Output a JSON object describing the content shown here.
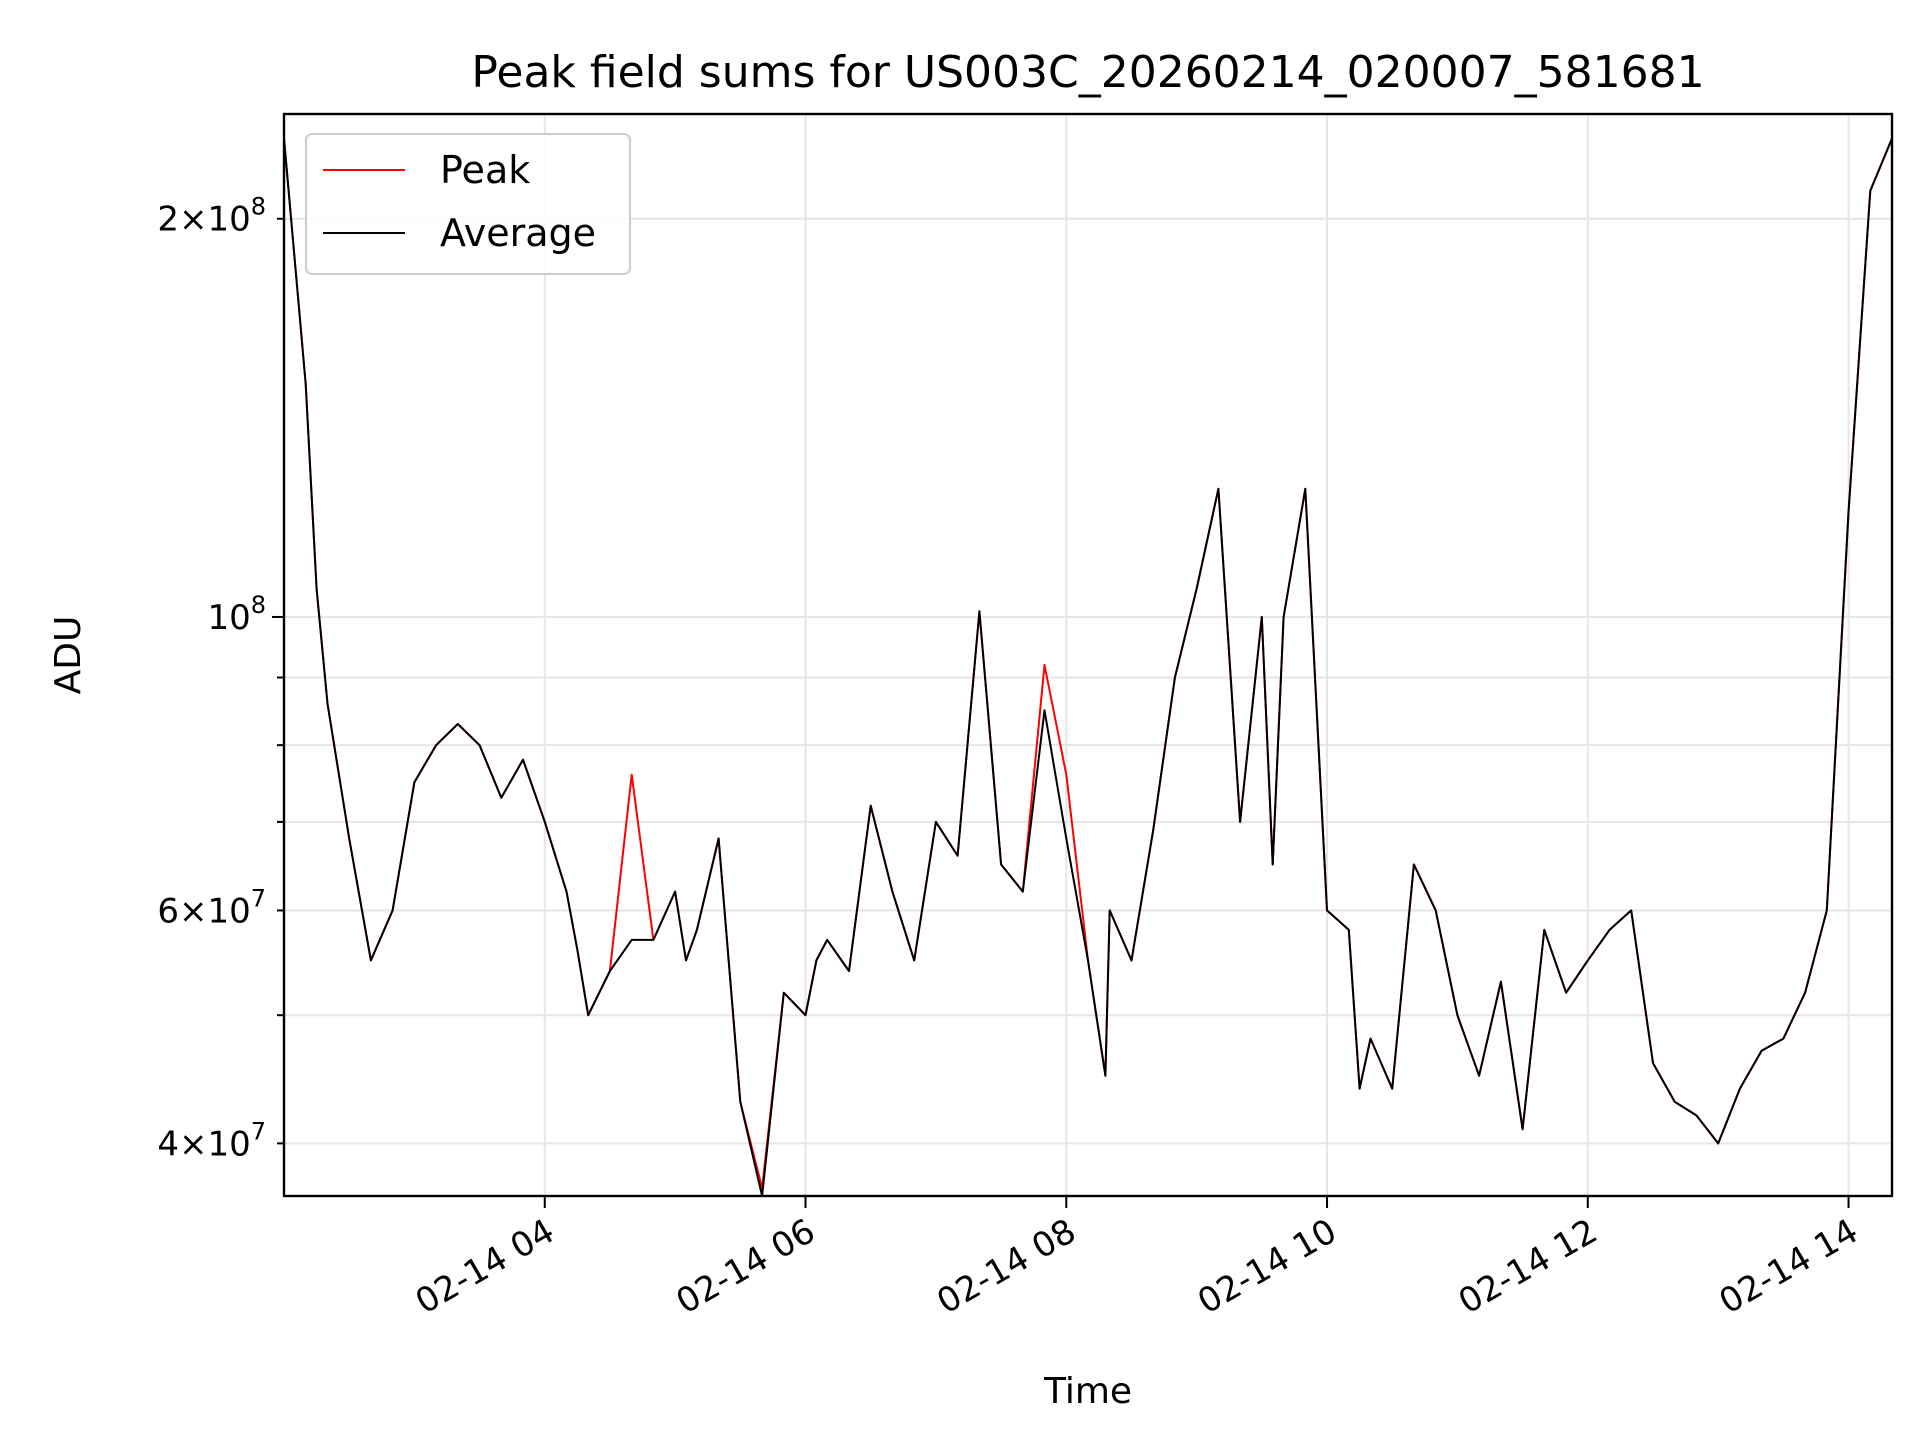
{
  "chart_data": {
    "type": "line",
    "title": "Peak field sums for US003C_20260214_020007_581681",
    "xlabel": "Time",
    "ylabel": "ADU",
    "yscale": "log",
    "ylim": [
      36500000,
      240000000
    ],
    "xlim": [
      "02-14 02:00",
      "02-14 14:20"
    ],
    "grid": true,
    "legend_position": "top-left",
    "x_ticks": [
      "02-14 04",
      "02-14 06",
      "02-14 08",
      "02-14 10",
      "02-14 12",
      "02-14 14"
    ],
    "y_ticks_major": [
      "10^8"
    ],
    "y_ticks_minor": [
      "4 × 10^7",
      "6 × 10^7",
      "2 × 10^8"
    ],
    "x": [
      "02:00",
      "02:10",
      "02:15",
      "02:20",
      "02:30",
      "02:40",
      "02:50",
      "03:00",
      "03:10",
      "03:20",
      "03:30",
      "03:40",
      "03:50",
      "04:00",
      "04:10",
      "04:15",
      "04:20",
      "04:30",
      "04:40",
      "04:50",
      "05:00",
      "05:05",
      "05:10",
      "05:20",
      "05:30",
      "05:40",
      "05:50",
      "06:00",
      "06:05",
      "06:10",
      "06:20",
      "06:30",
      "06:40",
      "06:50",
      "07:00",
      "07:10",
      "07:20",
      "07:30",
      "07:40",
      "07:50",
      "08:00",
      "08:10",
      "08:18",
      "08:20",
      "08:30",
      "08:40",
      "08:50",
      "09:00",
      "09:10",
      "09:20",
      "09:30",
      "09:35",
      "09:40",
      "09:50",
      "10:00",
      "10:10",
      "10:15",
      "10:20",
      "10:30",
      "10:40",
      "10:50",
      "11:00",
      "11:10",
      "11:20",
      "11:30",
      "11:40",
      "11:50",
      "12:00",
      "12:10",
      "12:20",
      "12:30",
      "12:40",
      "12:50",
      "13:00",
      "13:10",
      "13:20",
      "13:30",
      "13:40",
      "13:50",
      "14:00",
      "14:10",
      "14:20"
    ],
    "series": [
      {
        "name": "Peak",
        "color": "#ff0000",
        "values": [
          230000000,
          150000000,
          105000000,
          86000000,
          68000000,
          55000000,
          60000000,
          75000000,
          80000000,
          83000000,
          80000000,
          73000000,
          78000000,
          70000000,
          62000000,
          56000000,
          50000000,
          54000000,
          76000000,
          57000000,
          62000000,
          55000000,
          58000000,
          68000000,
          43000000,
          37000000,
          52000000,
          50000000,
          55000000,
          57000000,
          54000000,
          72000000,
          62000000,
          55000000,
          70000000,
          66000000,
          101000000,
          65000000,
          62000000,
          92000000,
          76000000,
          55000000,
          45000000,
          60000000,
          55000000,
          69000000,
          90000000,
          105000000,
          125000000,
          70000000,
          100000000,
          65000000,
          100000000,
          125000000,
          60000000,
          58000000,
          44000000,
          48000000,
          44000000,
          65000000,
          60000000,
          50000000,
          45000000,
          53000000,
          41000000,
          58000000,
          52000000,
          55000000,
          58000000,
          60000000,
          46000000,
          43000000,
          42000000,
          40000000,
          44000000,
          47000000,
          48000000,
          52000000,
          60000000,
          120000000,
          210000000,
          230000000
        ]
      },
      {
        "name": "Average",
        "color": "#000000",
        "values": [
          230000000,
          150000000,
          105000000,
          86000000,
          68000000,
          55000000,
          60000000,
          75000000,
          80000000,
          83000000,
          80000000,
          73000000,
          78000000,
          70000000,
          62000000,
          56000000,
          50000000,
          54000000,
          57000000,
          57000000,
          62000000,
          55000000,
          58000000,
          68000000,
          43000000,
          36500000,
          52000000,
          50000000,
          55000000,
          57000000,
          54000000,
          72000000,
          62000000,
          55000000,
          70000000,
          66000000,
          101000000,
          65000000,
          62000000,
          85000000,
          68000000,
          55000000,
          45000000,
          60000000,
          55000000,
          69000000,
          90000000,
          105000000,
          125000000,
          70000000,
          100000000,
          65000000,
          100000000,
          125000000,
          60000000,
          58000000,
          44000000,
          48000000,
          44000000,
          65000000,
          60000000,
          50000000,
          45000000,
          53000000,
          41000000,
          58000000,
          52000000,
          55000000,
          58000000,
          60000000,
          46000000,
          43000000,
          42000000,
          40000000,
          44000000,
          47000000,
          48000000,
          52000000,
          60000000,
          120000000,
          210000000,
          230000000
        ]
      }
    ]
  }
}
